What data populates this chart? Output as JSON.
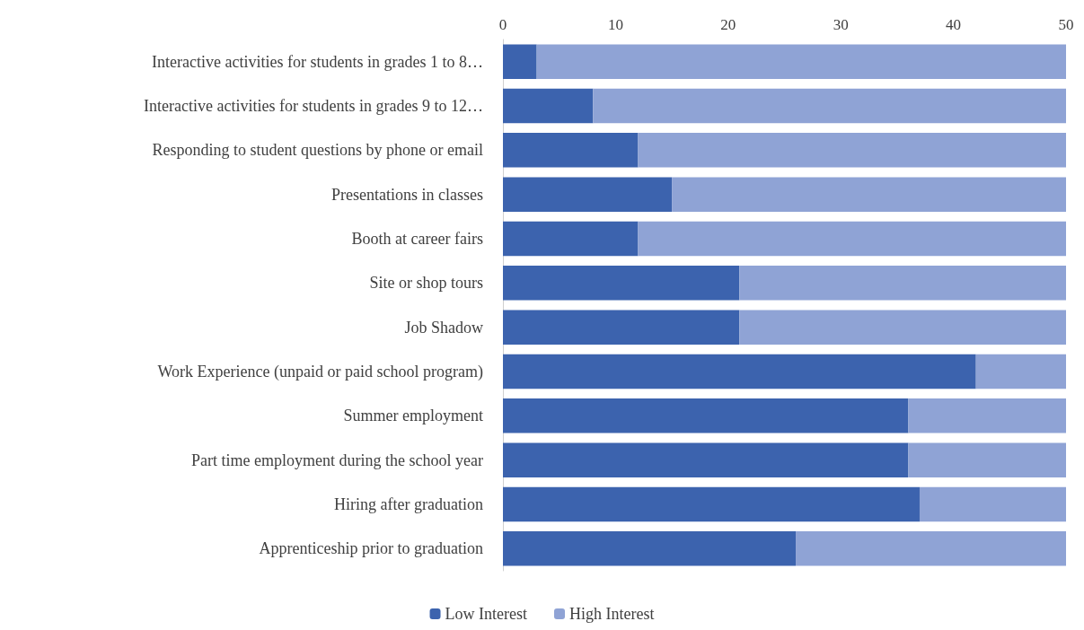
{
  "chart_data": {
    "type": "bar",
    "orientation": "horizontal",
    "stacked": true,
    "categories": [
      "Interactive activities for students in grades 1 to 8…",
      "Interactive activities for students in grades 9 to 12…",
      "Responding to student questions by phone or email",
      "Presentations in classes",
      "Booth at career fairs",
      "Site or shop tours",
      "Job Shadow",
      "Work Experience (unpaid or paid school program)",
      "Summer employment",
      "Part time employment during the school year",
      "Hiring after graduation",
      "Apprenticeship prior to graduation"
    ],
    "series": [
      {
        "name": "Low Interest",
        "color": "#3c63ae",
        "values": [
          3,
          8,
          12,
          15,
          12,
          21,
          21,
          42,
          36,
          36,
          37,
          26
        ]
      },
      {
        "name": "High Interest",
        "color": "#8fa3d5",
        "values": [
          47,
          42,
          38,
          35,
          38,
          29,
          29,
          8,
          14,
          14,
          13,
          24
        ]
      }
    ],
    "xlim": [
      0,
      50
    ],
    "xticks": [
      0,
      10,
      20,
      30,
      40,
      50
    ],
    "grid": false,
    "legend": "bottom"
  }
}
